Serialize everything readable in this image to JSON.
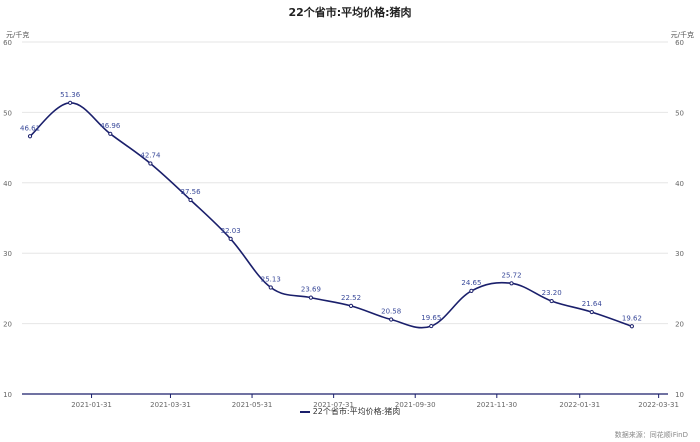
{
  "chart_data": {
    "type": "line",
    "title": "22个省市:平均价格:猪肉",
    "ylabel": "元/千克",
    "y2label": "元/千克",
    "ylim": [
      10,
      60
    ],
    "yticks": [
      10,
      20,
      30,
      40,
      50,
      60
    ],
    "xtick_labels": [
      "2021-01-31",
      "2021-03-31",
      "2021-05-31",
      "2021-07-31",
      "2021-09-30",
      "2021-11-30",
      "2022-01-31",
      "2022-03-31"
    ],
    "grid": true,
    "legend_position": "bottom",
    "series": [
      {
        "name": "22个省市:平均价格:猪肉",
        "color": "#1a1f6b",
        "x": [
          "2020-12-16",
          "2021-01-15",
          "2021-02-14",
          "2021-03-16",
          "2021-04-15",
          "2021-05-15",
          "2021-06-14",
          "2021-07-14",
          "2021-08-13",
          "2021-09-12",
          "2021-10-12",
          "2021-11-11",
          "2021-12-11",
          "2022-01-10",
          "2022-02-09",
          "2022-03-11"
        ],
        "values": [
          46.61,
          51.36,
          46.96,
          42.74,
          37.56,
          32.03,
          25.13,
          23.69,
          22.52,
          20.58,
          19.65,
          24.65,
          25.72,
          23.2,
          21.64,
          19.62
        ],
        "labels": [
          "46.61",
          "51.36",
          "46.96",
          "42.74",
          "37.56",
          "32.03",
          "25.13",
          "23.69",
          "22.52",
          "20.58",
          "19.65",
          "24.65",
          "25.72",
          "23.20",
          "21.64",
          "19.62"
        ]
      }
    ]
  },
  "footer": {
    "source": "数据来源：同花顺iFinD"
  }
}
